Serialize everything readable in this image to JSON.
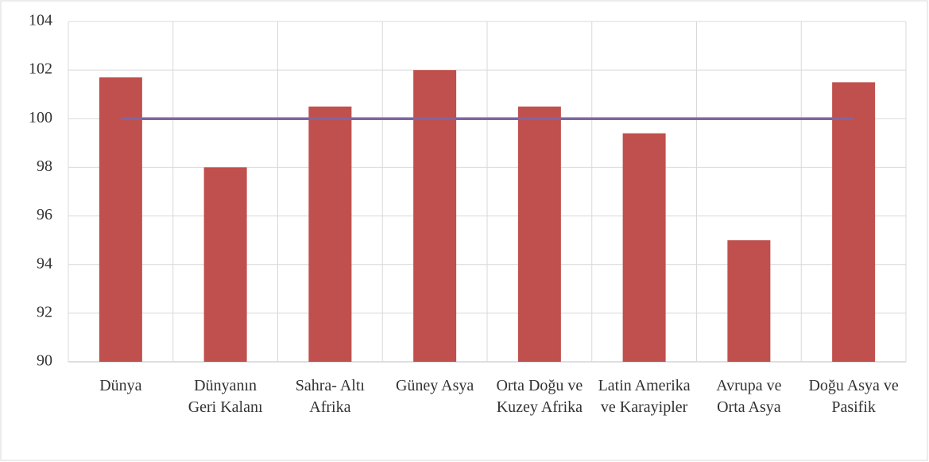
{
  "chart_data": {
    "type": "bar",
    "categories": [
      "Dünya",
      "Dünyanın Geri Kalanı",
      "Sahra- Altı Afrika",
      "Güney Asya",
      "Orta Doğu ve Kuzey Afrika",
      "Latin Amerika ve Karayipler",
      "Avrupa ve Orta Asya",
      "Doğu Asya ve Pasifik"
    ],
    "series": [
      {
        "type": "bar",
        "color": "#c0504d",
        "values": [
          101.7,
          98,
          100.5,
          102,
          100.5,
          99.4,
          95,
          101.5
        ]
      },
      {
        "type": "line",
        "color": "#8064a2",
        "values": [
          100,
          100,
          100,
          100,
          100,
          100,
          100,
          100
        ]
      }
    ],
    "ylim": [
      90,
      104
    ],
    "yticks": [
      90,
      92,
      94,
      96,
      98,
      100,
      102,
      104
    ],
    "grid": true
  }
}
